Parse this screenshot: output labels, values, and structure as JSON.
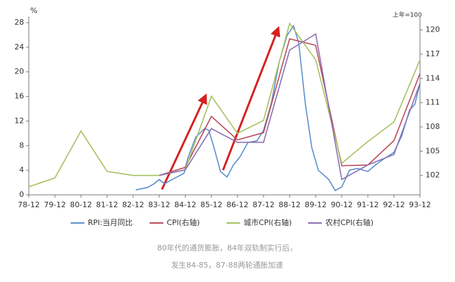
{
  "chart_data": {
    "type": "line",
    "y_label": "%",
    "y2_label": "上年=100",
    "xlim": [
      1978,
      1993
    ],
    "xticks": [
      {
        "value": 1978,
        "label": "78-12"
      },
      {
        "value": 1979,
        "label": "79-12"
      },
      {
        "value": 1980,
        "label": "80-12"
      },
      {
        "value": 1981,
        "label": "81-12"
      },
      {
        "value": 1982,
        "label": "82-12"
      },
      {
        "value": 1983,
        "label": "83-12"
      },
      {
        "value": 1984,
        "label": "84-12"
      },
      {
        "value": 1985,
        "label": "85-12"
      },
      {
        "value": 1986,
        "label": "86-12"
      },
      {
        "value": 1987,
        "label": "87-12"
      },
      {
        "value": 1988,
        "label": "88-12"
      },
      {
        "value": 1989,
        "label": "89-12"
      },
      {
        "value": 1990,
        "label": "90-12"
      },
      {
        "value": 1991,
        "label": "91-12"
      },
      {
        "value": 1992,
        "label": "92-12"
      },
      {
        "value": 1993,
        "label": "93-12"
      }
    ],
    "ylim": [
      0,
      28
    ],
    "yticks": [
      0,
      4,
      8,
      12,
      16,
      20,
      24,
      28
    ],
    "y2lim": [
      99.6,
      120.9
    ],
    "y2ticks": [
      102,
      105,
      108,
      111,
      114,
      117,
      120
    ],
    "series": [
      {
        "name": "RPI:当月同比",
        "color": "#5b8fc9",
        "x": [
          1982.1,
          1982.55,
          1982.8,
          1983.0,
          1983.2,
          1983.5,
          1983.95,
          1984.1,
          1984.4,
          1984.75,
          1984.9,
          1985.1,
          1985.35,
          1985.6,
          1985.85,
          1986.1,
          1986.4,
          1986.75,
          1987.0,
          1987.3,
          1987.6,
          1987.9,
          1988.15,
          1988.35,
          1988.6,
          1988.85,
          1989.1,
          1989.5,
          1989.75,
          1990.0,
          1990.3,
          1990.6,
          1991.0,
          1991.3,
          1991.6,
          1992.0,
          1992.3,
          1992.6,
          1992.8,
          1993.0
        ],
        "values": [
          0.8,
          1.2,
          1.8,
          2.5,
          1.8,
          2.5,
          3.5,
          6.0,
          9.4,
          10.8,
          10.5,
          7.7,
          3.8,
          2.9,
          4.9,
          6.2,
          8.5,
          8.8,
          10.5,
          14.9,
          21.6,
          25.9,
          27.5,
          24.7,
          14.9,
          7.7,
          4.0,
          2.5,
          0.7,
          1.3,
          4.0,
          4.3,
          3.8,
          4.9,
          5.8,
          6.9,
          9.6,
          13.8,
          14.7,
          18.1
        ]
      },
      {
        "name": "CPI(右轴)",
        "color": "#b84c5a",
        "axis": "y2",
        "x": [
          1983,
          1984,
          1985,
          1986,
          1987,
          1988,
          1989,
          1990,
          1991,
          1992,
          1993
        ],
        "values": [
          102.0,
          103.0,
          109.3,
          106.4,
          107.3,
          118.9,
          118.1,
          103.2,
          103.3,
          106.3,
          114.6
        ]
      },
      {
        "name": "城市CPI(右轴)",
        "color": "#a5c060",
        "axis": "y2",
        "x": [
          1978,
          1979,
          1980,
          1981,
          1982,
          1983,
          1984,
          1985,
          1986,
          1987,
          1988,
          1989,
          1990,
          1991,
          1992,
          1993
        ],
        "values": [
          100.6,
          101.7,
          107.5,
          102.5,
          102.0,
          102.0,
          102.7,
          111.8,
          107.2,
          108.8,
          120.8,
          116.3,
          103.5,
          106.2,
          108.6,
          116.3
        ]
      },
      {
        "name": "农村CPI(右轴)",
        "color": "#8a6db3",
        "axis": "y2",
        "x": [
          1983,
          1984,
          1985,
          1986,
          1987,
          1988,
          1989,
          1990,
          1991,
          1992,
          1993
        ],
        "values": [
          102.0,
          102.7,
          107.8,
          106.1,
          106.1,
          117.5,
          119.5,
          101.5,
          103.3,
          104.6,
          113.4
        ]
      }
    ],
    "notes": [
      "80年代的通货膨胀，84年双轨制实行后，",
      "发生84-85，87-88两轮通胀加速"
    ]
  }
}
